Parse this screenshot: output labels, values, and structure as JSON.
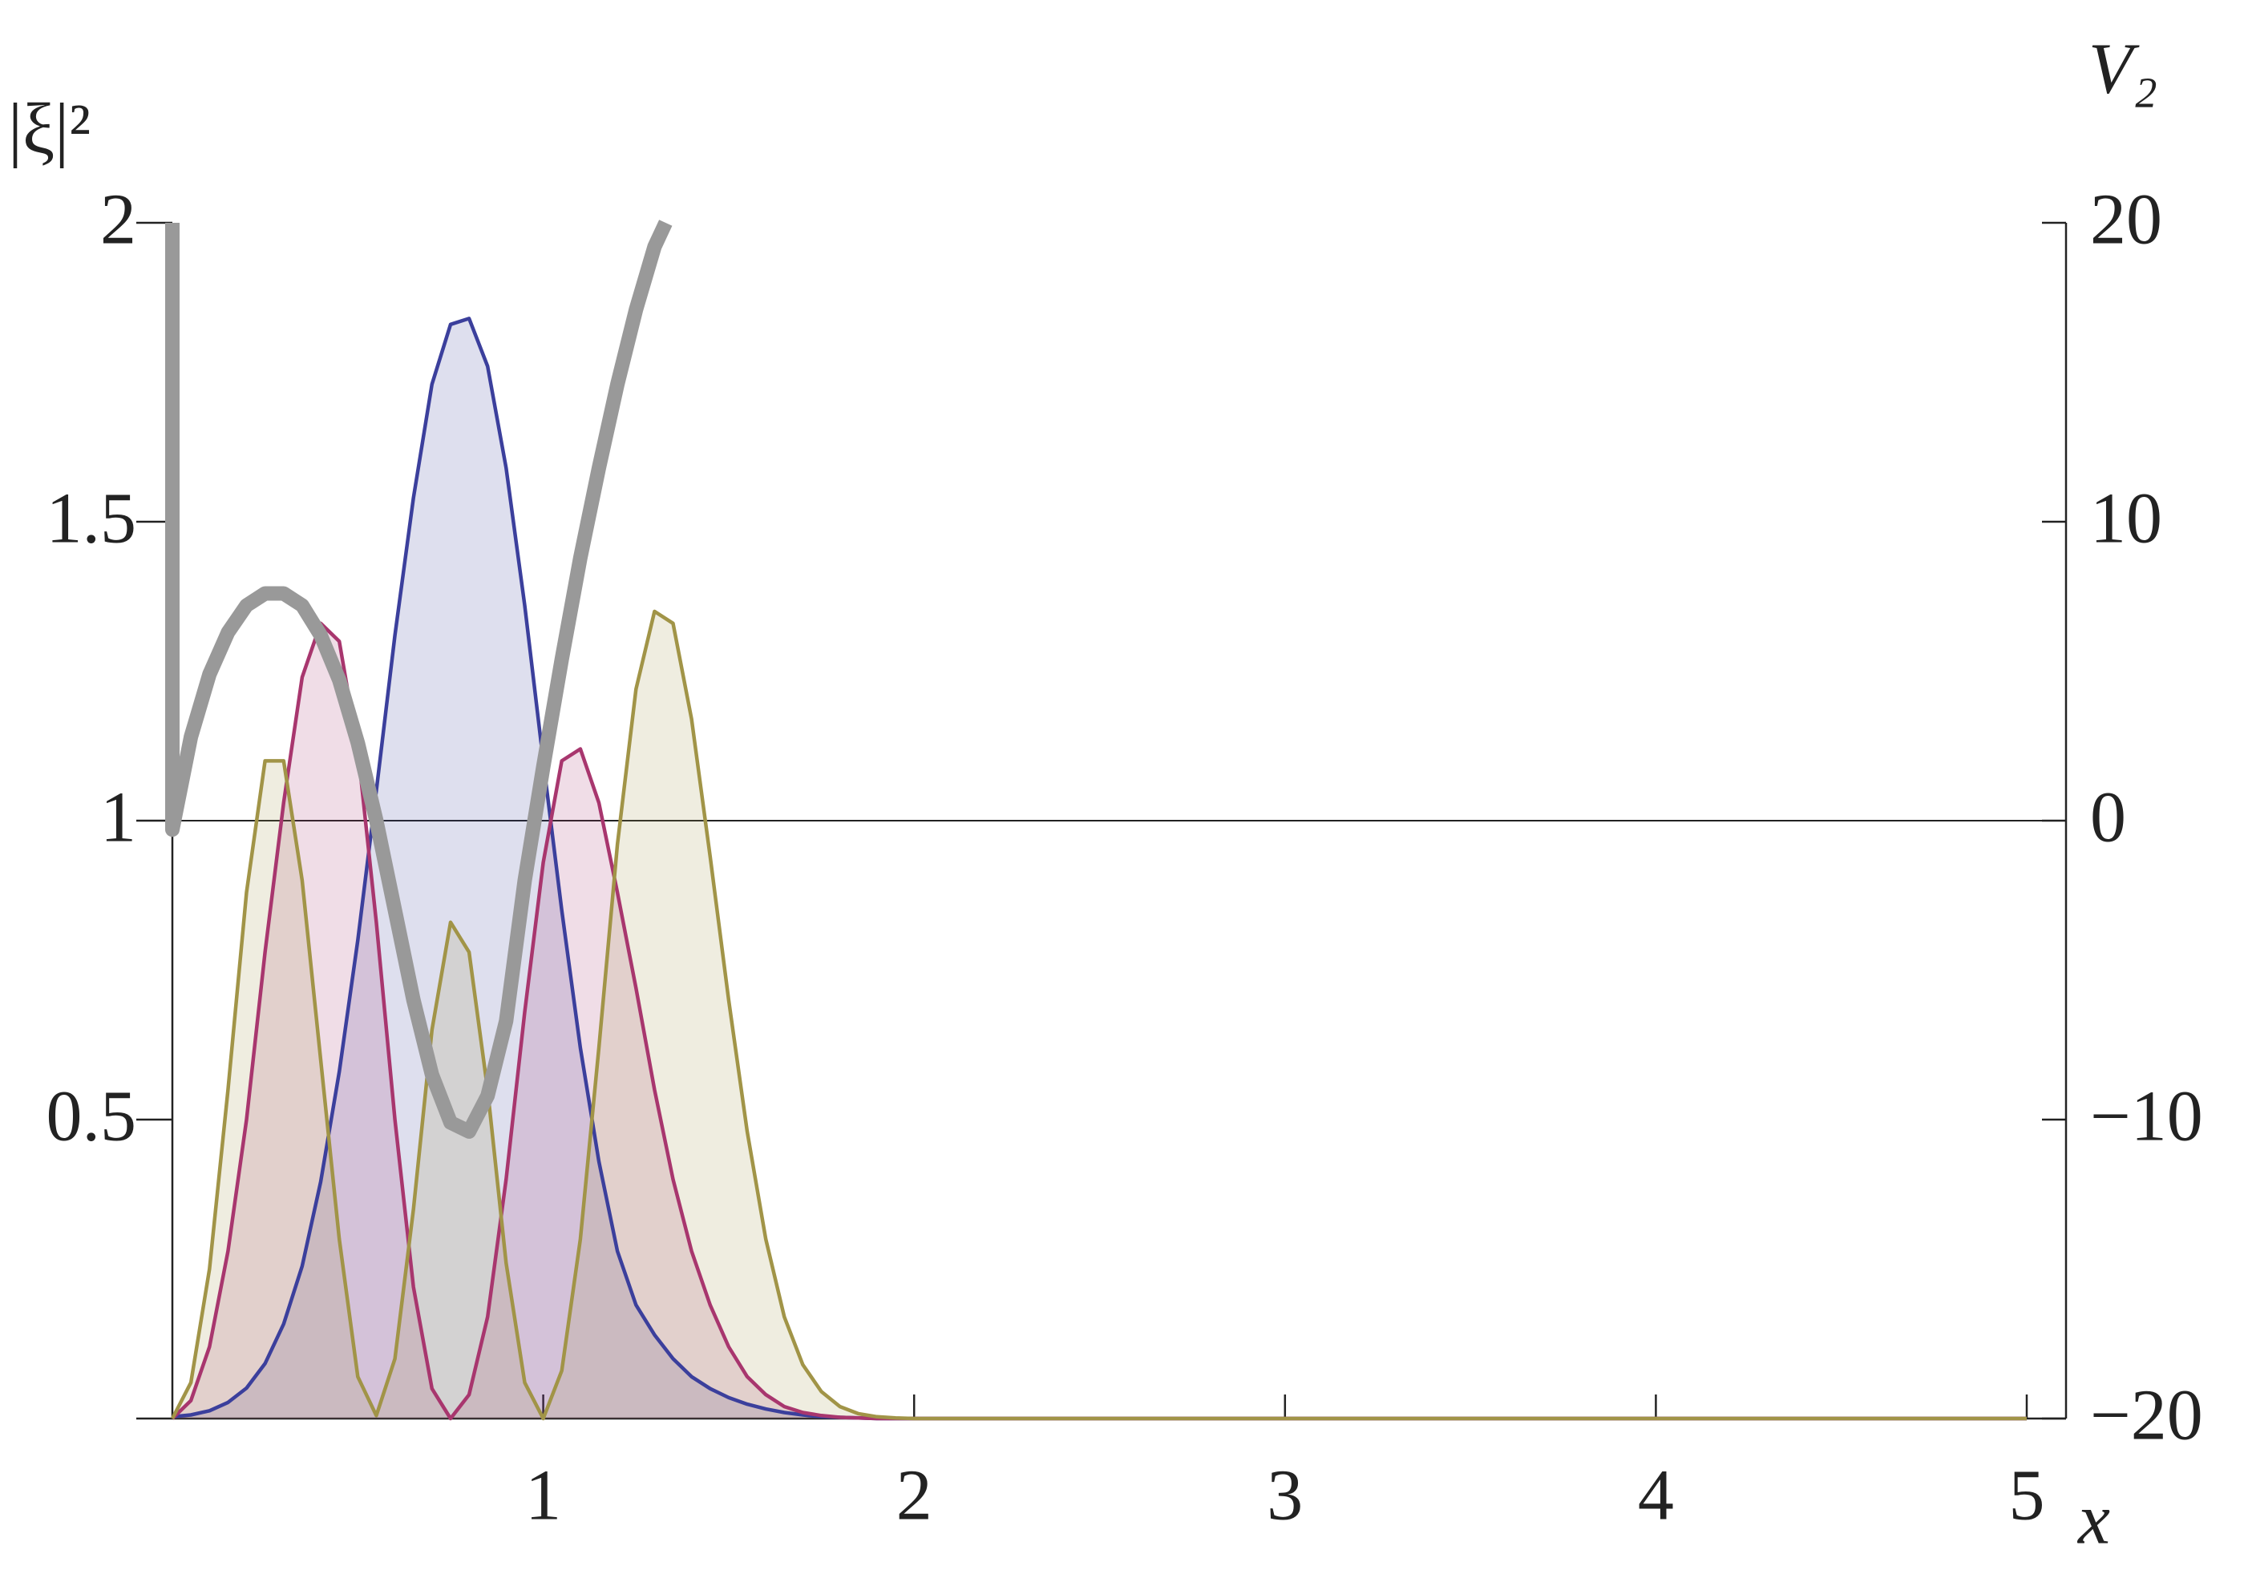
{
  "chart_data": {
    "type": "line",
    "x_label": "x",
    "y_label": "|ξ|²",
    "y2_label": "V₂",
    "xlim": [
      0,
      5
    ],
    "xticks": [
      1,
      2,
      3,
      4,
      5
    ],
    "ylim": [
      0,
      2
    ],
    "yticks": [
      0.5,
      1,
      1.5,
      2
    ],
    "y2lim": [
      -20,
      20
    ],
    "y2ticks": [
      {
        "value": -20,
        "label": "−20"
      },
      {
        "value": -10,
        "label": "−10"
      },
      0,
      10,
      20
    ],
    "grid": false,
    "x": [
      0,
      0.05,
      0.1,
      0.15,
      0.2,
      0.25,
      0.3,
      0.35,
      0.4,
      0.45,
      0.5,
      0.55,
      0.6,
      0.65,
      0.7,
      0.75,
      0.8,
      0.85,
      0.9,
      0.95,
      1.0,
      1.05,
      1.1,
      1.15,
      1.2,
      1.25,
      1.3,
      1.35,
      1.4,
      1.45,
      1.5,
      1.55,
      1.6,
      1.65,
      1.7,
      1.75,
      1.8,
      1.85,
      1.9,
      1.95,
      2.0,
      3,
      4,
      5
    ],
    "series": [
      {
        "color": "#3b3f9c",
        "fill": true,
        "values": [
          0.003,
          0.006,
          0.013,
          0.027,
          0.051,
          0.092,
          0.158,
          0.255,
          0.396,
          0.58,
          0.8,
          1.05,
          1.31,
          1.54,
          1.73,
          1.83,
          1.84,
          1.76,
          1.59,
          1.36,
          1.1,
          0.85,
          0.62,
          0.43,
          0.28,
          0.19,
          0.14,
          0.1,
          0.07,
          0.05,
          0.035,
          0.024,
          0.016,
          0.01,
          0.006,
          0.003,
          0.002,
          0.001,
          0,
          0,
          0,
          0,
          0,
          0
        ]
      },
      {
        "color": "#a8366e",
        "fill": true,
        "values": [
          0,
          0.03,
          0.12,
          0.28,
          0.5,
          0.78,
          1.03,
          1.24,
          1.33,
          1.3,
          1.12,
          0.83,
          0.5,
          0.22,
          0.05,
          0,
          0.04,
          0.17,
          0.4,
          0.68,
          0.93,
          1.1,
          1.12,
          1.03,
          0.88,
          0.72,
          0.55,
          0.4,
          0.28,
          0.19,
          0.12,
          0.07,
          0.04,
          0.02,
          0.01,
          0.005,
          0.002,
          0.001,
          0,
          0,
          0,
          0,
          0,
          0
        ]
      },
      {
        "color": "#a19447",
        "fill": true,
        "values": [
          0,
          0.06,
          0.25,
          0.55,
          0.88,
          1.1,
          1.1,
          0.9,
          0.6,
          0.3,
          0.07,
          0.005,
          0.1,
          0.35,
          0.65,
          0.83,
          0.78,
          0.55,
          0.26,
          0.06,
          0,
          0.08,
          0.3,
          0.62,
          0.96,
          1.22,
          1.35,
          1.33,
          1.17,
          0.94,
          0.7,
          0.48,
          0.3,
          0.17,
          0.09,
          0.045,
          0.02,
          0.008,
          0.003,
          0.001,
          0,
          0,
          0,
          0
        ]
      },
      {
        "color": "#999999",
        "axis": "y2",
        "fill": false,
        "x": [
          0,
          0,
          0.05,
          0.1,
          0.15,
          0.2,
          0.25,
          0.3,
          0.35,
          0.4,
          0.45,
          0.5,
          0.55,
          0.6,
          0.65,
          0.7,
          0.75,
          0.8,
          0.85,
          0.9,
          0.95,
          1.0,
          1.05,
          1.1,
          1.15,
          1.2,
          1.25,
          1.3,
          1.33
        ],
        "values": [
          20,
          -0.3,
          2.8,
          4.9,
          6.3,
          7.2,
          7.6,
          7.6,
          7.2,
          6.2,
          4.7,
          2.6,
          0,
          -3,
          -6,
          -8.5,
          -10.1,
          -10.4,
          -9.2,
          -6.7,
          -2,
          1.8,
          5.4,
          8.8,
          11.8,
          14.6,
          17.1,
          19.2,
          20
        ]
      }
    ]
  }
}
